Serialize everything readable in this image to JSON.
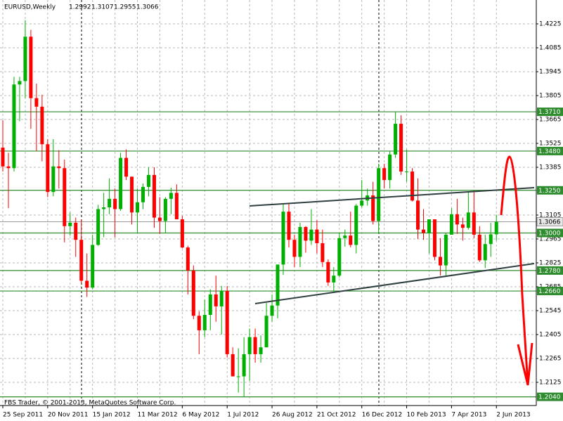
{
  "chart_data": {
    "type": "candlestick",
    "title": "EURUSD,Weekly",
    "footer": "FBS Trader, © 2001-2013, MetaQuotes Software Corp.",
    "categories": [
      "25 Sep 2011",
      null,
      null,
      null,
      null,
      null,
      null,
      null,
      "20 Nov 2011",
      null,
      null,
      null,
      null,
      null,
      null,
      null,
      "15 Jan 2012",
      null,
      null,
      null,
      null,
      null,
      null,
      null,
      "11 Mar 2012",
      null,
      null,
      null,
      null,
      null,
      null,
      null,
      "6 May 2012",
      null,
      null,
      null,
      null,
      null,
      null,
      null,
      "1 Jul 2012",
      null,
      null,
      null,
      null,
      null,
      null,
      null,
      "26 Aug 2012",
      null,
      null,
      null,
      null,
      null,
      null,
      null,
      "21 Oct 2012",
      null,
      null,
      null,
      null,
      null,
      null,
      null,
      "16 Dec 2012",
      null,
      null,
      null,
      null,
      null,
      null,
      null,
      "10 Feb 2013",
      null,
      null,
      null,
      null,
      null,
      null,
      null,
      "7 Apr 2013",
      null,
      null,
      null,
      null,
      null,
      null,
      null,
      "2 Jun 2013"
    ],
    "open": [
      1.35,
      1.339,
      1.338,
      1.387,
      1.389,
      1.415,
      1.379,
      1.374,
      1.352,
      1.324,
      1.339,
      1.338,
      1.304,
      1.306,
      1.296,
      1.272,
      1.268,
      1.293,
      1.314,
      1.315,
      1.32,
      1.314,
      1.344,
      1.333,
      1.312,
      1.318,
      1.327,
      1.334,
      1.309,
      1.307,
      1.32,
      1.3235,
      1.308,
      1.2915,
      1.278,
      1.2515,
      1.243,
      1.252,
      1.264,
      1.257,
      1.266,
      1.229,
      1.216,
      1.216,
      1.229,
      1.239,
      1.229,
      1.233,
      1.2515,
      1.2575,
      1.2815,
      1.3125,
      1.296,
      1.286,
      1.3035,
      1.2955,
      1.302,
      1.294,
      1.283,
      1.271,
      1.275,
      1.297,
      1.2985,
      1.293,
      1.316,
      1.319,
      1.322,
      1.307,
      1.338,
      1.331,
      1.346,
      1.364,
      1.336,
      1.336,
      1.319,
      1.302,
      1.3,
      1.308,
      1.286,
      1.281,
      1.299,
      1.311,
      1.305,
      1.303,
      1.312,
      1.299,
      1.284,
      1.2935,
      1.2992
    ],
    "high": [
      1.366,
      1.347,
      1.3915,
      1.3915,
      1.4247,
      1.419,
      1.3875,
      1.381,
      1.355,
      1.355,
      1.3485,
      1.343,
      1.312,
      1.309,
      1.308,
      1.288,
      1.299,
      1.3165,
      1.3235,
      1.332,
      1.326,
      1.347,
      1.349,
      1.333,
      1.326,
      1.329,
      1.3385,
      1.3385,
      1.321,
      1.321,
      1.3265,
      1.3285,
      1.31,
      1.2925,
      1.281,
      1.254,
      1.261,
      1.267,
      1.275,
      1.269,
      1.269,
      1.233,
      1.2325,
      1.239,
      1.244,
      1.244,
      1.24,
      1.259,
      1.264,
      1.2815,
      1.317,
      1.317,
      1.299,
      1.306,
      1.304,
      1.314,
      1.3075,
      1.302,
      1.2845,
      1.28,
      1.3,
      1.302,
      1.3125,
      1.317,
      1.331,
      1.326,
      1.33,
      1.3405,
      1.3405,
      1.348,
      1.371,
      1.369,
      1.349,
      1.338,
      1.332,
      1.314,
      1.308,
      1.308,
      1.297,
      1.3,
      1.3145,
      1.32,
      1.309,
      1.324,
      1.324,
      1.304,
      1.299,
      1.306,
      1.3107
    ],
    "low": [
      1.336,
      1.3145,
      1.336,
      1.3655,
      1.379,
      1.361,
      1.348,
      1.342,
      1.321,
      1.3215,
      1.326,
      1.2945,
      1.2985,
      1.286,
      1.2705,
      1.2625,
      1.267,
      1.2925,
      1.2975,
      1.311,
      1.2975,
      1.313,
      1.331,
      1.305,
      1.3,
      1.314,
      1.3215,
      1.303,
      1.2995,
      1.3,
      1.311,
      1.308,
      1.291,
      1.264,
      1.2495,
      1.229,
      1.239,
      1.243,
      1.248,
      1.2405,
      1.227,
      1.216,
      1.2065,
      1.204,
      1.2135,
      1.224,
      1.224,
      1.233,
      1.248,
      1.25,
      1.2755,
      1.2915,
      1.28,
      1.28,
      1.2885,
      1.293,
      1.288,
      1.28,
      1.269,
      1.266,
      1.274,
      1.292,
      1.2915,
      1.288,
      1.315,
      1.316,
      1.305,
      1.3,
      1.326,
      1.326,
      1.344,
      1.334,
      1.33,
      1.3185,
      1.2965,
      1.296,
      1.288,
      1.284,
      1.275,
      1.2745,
      1.299,
      1.2995,
      1.2955,
      1.302,
      1.297,
      1.283,
      1.2795,
      1.286,
      1.2955
    ],
    "close": [
      1.339,
      1.338,
      1.387,
      1.389,
      1.415,
      1.379,
      1.374,
      1.352,
      1.324,
      1.339,
      1.338,
      1.304,
      1.306,
      1.296,
      1.272,
      1.268,
      1.293,
      1.314,
      1.315,
      1.32,
      1.314,
      1.344,
      1.333,
      1.312,
      1.318,
      1.327,
      1.334,
      1.309,
      1.307,
      1.32,
      1.3235,
      1.308,
      1.2915,
      1.278,
      1.2515,
      1.243,
      1.252,
      1.264,
      1.257,
      1.266,
      1.229,
      1.216,
      1.216,
      1.229,
      1.239,
      1.229,
      1.233,
      1.2515,
      1.2575,
      1.2815,
      1.3125,
      1.296,
      1.286,
      1.3035,
      1.2955,
      1.302,
      1.294,
      1.283,
      1.271,
      1.275,
      1.297,
      1.2985,
      1.293,
      1.316,
      1.319,
      1.322,
      1.307,
      1.338,
      1.331,
      1.346,
      1.364,
      1.336,
      1.336,
      1.319,
      1.302,
      1.3,
      1.308,
      1.286,
      1.281,
      1.299,
      1.311,
      1.305,
      1.303,
      1.312,
      1.299,
      1.284,
      1.2935,
      1.2992,
      1.3066
    ],
    "up_color": "#00b000",
    "down_color": "#ff0000",
    "ylim": [
      1.1989,
      1.4365
    ],
    "yticks": [
      1.4225,
      1.4085,
      1.3945,
      1.3805,
      1.3665,
      1.3525,
      1.3385,
      1.3105,
      1.2965,
      1.2825,
      1.2685,
      1.2545,
      1.2405,
      1.2265,
      1.2125
    ],
    "grid": true,
    "levels": [
      {
        "value": 1.371,
        "label": "1.3710"
      },
      {
        "value": 1.348,
        "label": "1.3480"
      },
      {
        "value": 1.325,
        "label": "1.3250"
      },
      {
        "value": 1.3,
        "label": "1.3000"
      },
      {
        "value": 1.278,
        "label": "1.2780"
      },
      {
        "value": 1.266,
        "label": "1.2660"
      },
      {
        "value": 1.204,
        "label": "1.2040"
      }
    ],
    "level_color": "#2e8b2e"
  }
}
